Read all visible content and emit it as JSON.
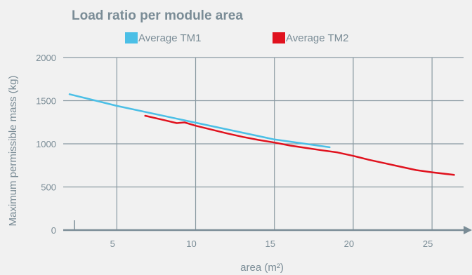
{
  "chart_data": {
    "type": "line",
    "title": "Load ratio per module area",
    "xlabel": "area (m²)",
    "ylabel": "Maximum permissible mass (kg)",
    "xlim": [
      1.6,
      27.0
    ],
    "ylim": [
      0,
      2000
    ],
    "x_ticks": [
      5,
      10,
      15,
      20,
      25
    ],
    "y_ticks": [
      0,
      500,
      1000,
      1500,
      2000
    ],
    "grid": true,
    "legend_position": "top",
    "series": [
      {
        "name": "Average TM1",
        "color": "#4bbfe6",
        "points": [
          [
            2.0,
            1575
          ],
          [
            5.0,
            1440
          ],
          [
            10.0,
            1245
          ],
          [
            15.0,
            1050
          ],
          [
            18.5,
            960
          ]
        ]
      },
      {
        "name": "Average TM2",
        "color": "#e0121e",
        "points": [
          [
            6.8,
            1325
          ],
          [
            8.0,
            1275
          ],
          [
            8.8,
            1240
          ],
          [
            9.3,
            1248
          ],
          [
            10.0,
            1210
          ],
          [
            11.0,
            1165
          ],
          [
            12.0,
            1120
          ],
          [
            13.0,
            1080
          ],
          [
            14.0,
            1045
          ],
          [
            15.0,
            1015
          ],
          [
            16.0,
            980
          ],
          [
            17.0,
            952
          ],
          [
            18.0,
            925
          ],
          [
            19.0,
            900
          ],
          [
            20.0,
            860
          ],
          [
            21.0,
            815
          ],
          [
            22.0,
            775
          ],
          [
            23.0,
            735
          ],
          [
            24.0,
            695
          ],
          [
            25.0,
            670
          ],
          [
            26.4,
            640
          ]
        ]
      }
    ]
  }
}
